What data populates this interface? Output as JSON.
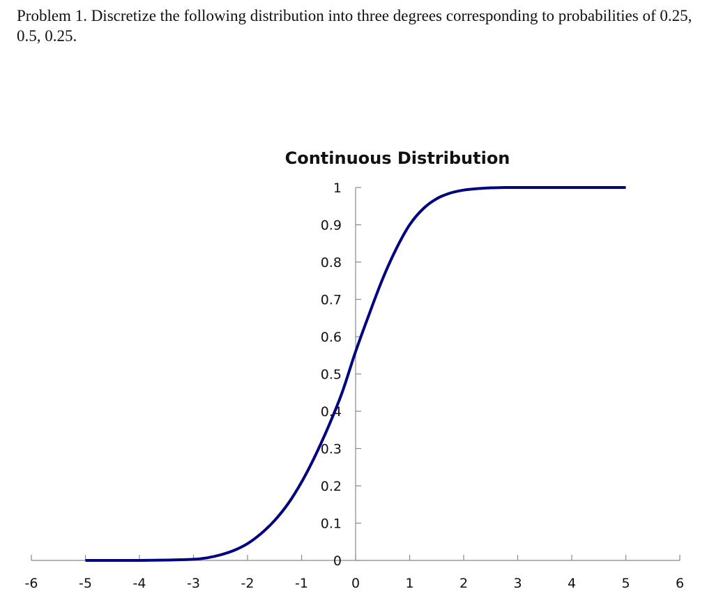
{
  "problem": {
    "text": "Problem 1. Discretize the following distribution into three degrees corresponding to probabilities of 0.25, 0.5, 0.25."
  },
  "chart_data": {
    "type": "line",
    "title": "Continuous Distribution",
    "xlabel": "",
    "ylabel": "",
    "xlim": [
      -6,
      6
    ],
    "ylim": [
      0,
      1
    ],
    "x_ticks": [
      -6,
      -5,
      -4,
      -3,
      -2,
      -1,
      0,
      1,
      2,
      3,
      4,
      5,
      6
    ],
    "y_ticks": [
      0,
      0.1,
      0.2,
      0.3,
      0.4,
      0.5,
      0.6,
      0.7,
      0.8,
      0.9,
      1
    ],
    "x_tick_labels": [
      "-6",
      "-5",
      "-4",
      "-3",
      "-2",
      "-1",
      "0",
      "1",
      "2",
      "3",
      "4",
      "5",
      "6"
    ],
    "y_tick_labels": [
      "0",
      "0.1",
      "0.2",
      "0.3",
      "0.4",
      "0.5",
      "0.6",
      "0.7",
      "0.8",
      "0.9",
      "1"
    ],
    "grid": false,
    "series": [
      {
        "color": "#000080",
        "x": [
          -5,
          -4.5,
          -4,
          -3.5,
          -3,
          -2.75,
          -2.5,
          -2.25,
          -2,
          -1.75,
          -1.5,
          -1.25,
          -1,
          -0.75,
          -0.5,
          -0.25,
          0,
          0.25,
          0.5,
          0.75,
          1,
          1.25,
          1.5,
          1.75,
          2,
          2.25,
          2.5,
          2.75,
          3,
          3.5,
          4,
          4.5,
          5
        ],
        "y": [
          0.0,
          0.0,
          0.0,
          0.001,
          0.003,
          0.007,
          0.015,
          0.027,
          0.045,
          0.072,
          0.107,
          0.152,
          0.21,
          0.28,
          0.36,
          0.45,
          0.56,
          0.66,
          0.755,
          0.835,
          0.9,
          0.943,
          0.97,
          0.985,
          0.993,
          0.997,
          0.999,
          1.0,
          1.0,
          1.0,
          1.0,
          1.0,
          1.0
        ]
      }
    ]
  }
}
